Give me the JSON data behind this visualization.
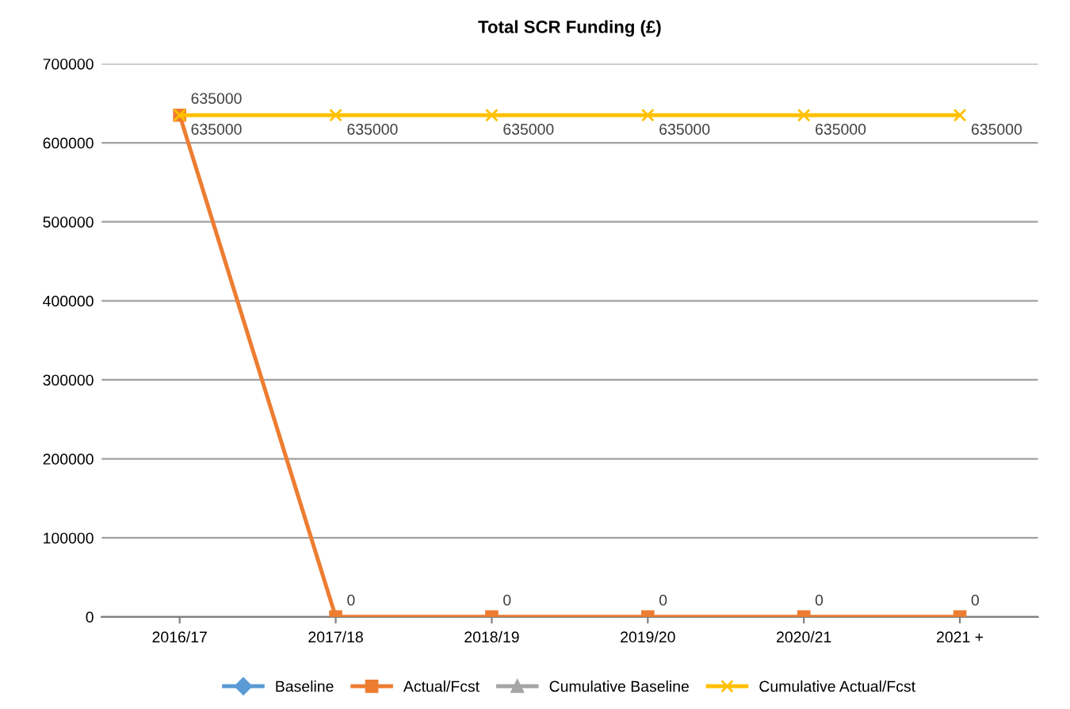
{
  "chart_data": {
    "type": "line",
    "title": "Total SCR Funding (£)",
    "categories": [
      "2016/17",
      "2017/18",
      "2018/19",
      "2019/20",
      "2020/21",
      "2021 +"
    ],
    "series": [
      {
        "name": "Baseline",
        "color": "#5b9bd5",
        "marker": "diamond",
        "values": [
          null,
          null,
          null,
          null,
          null,
          null
        ]
      },
      {
        "name": "Actual/Fcst",
        "color": "#ed7d31",
        "marker": "square",
        "values": [
          635000,
          0,
          0,
          0,
          0,
          0
        ],
        "value_labels": [
          "635000",
          "0",
          "0",
          "0",
          "0",
          "0"
        ]
      },
      {
        "name": "Cumulative Baseline",
        "color": "#a5a5a5",
        "marker": "triangle",
        "values": [
          null,
          null,
          null,
          null,
          null,
          null
        ]
      },
      {
        "name": "Cumulative Actual/Fcst",
        "color": "#ffc000",
        "marker": "cross",
        "values": [
          635000,
          635000,
          635000,
          635000,
          635000,
          635000
        ],
        "value_labels": [
          "635000",
          "635000",
          "635000",
          "635000",
          "635000",
          "635000"
        ]
      }
    ],
    "ylim": [
      0,
      700000
    ],
    "yticks": [
      0,
      100000,
      200000,
      300000,
      400000,
      500000,
      600000,
      700000
    ],
    "grid": "y",
    "legend": "bottom",
    "line_style": "solid"
  }
}
